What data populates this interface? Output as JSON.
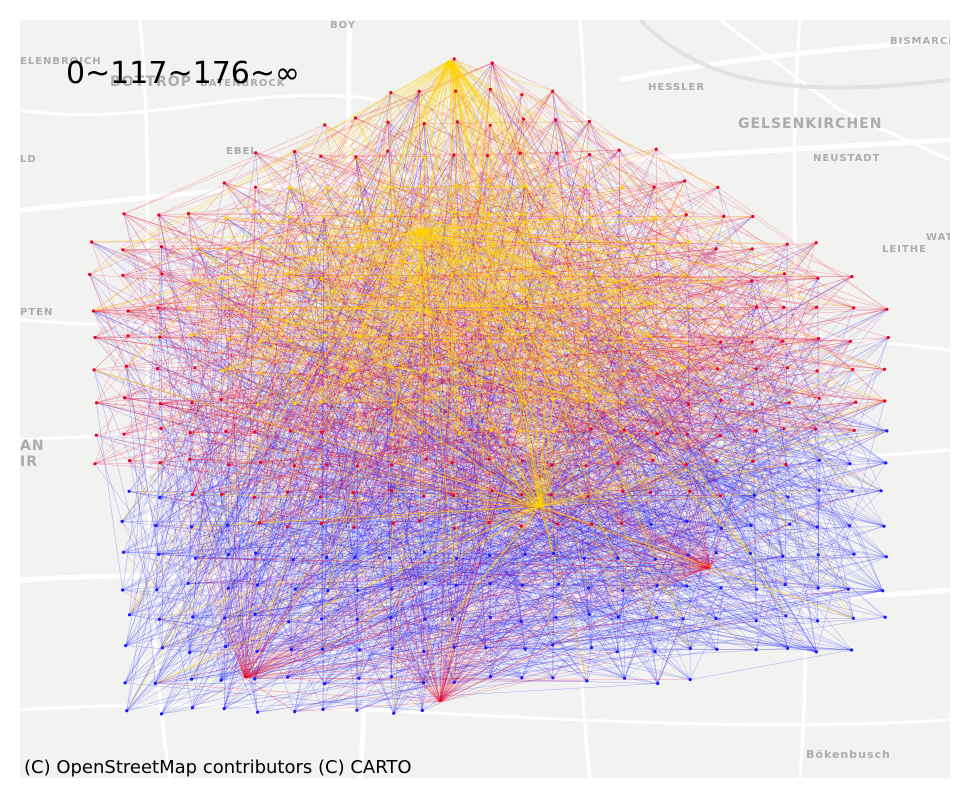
{
  "title_label": "0~117~176~∞",
  "attribution": "(C) OpenStreetMap contributors (C) CARTO",
  "places": [
    {
      "name": "BOY",
      "size": 10
    },
    {
      "name": "BISMARCK",
      "size": 10
    },
    {
      "name": "ELENBROICH",
      "size": 10
    },
    {
      "name": "BOTTROP",
      "size": 14
    },
    {
      "name": "BATENBROCK",
      "size": 10
    },
    {
      "name": "HESSLER",
      "size": 10
    },
    {
      "name": "GELSENKIRCHEN",
      "size": 14
    },
    {
      "name": "NEUSTADT",
      "size": 10
    },
    {
      "name": "LD",
      "size": 10
    },
    {
      "name": "EBEL",
      "size": 10
    },
    {
      "name": "LEITHE",
      "size": 10
    },
    {
      "name": "WAT",
      "size": 10
    },
    {
      "name": "PTEN",
      "size": 10
    },
    {
      "name": "AN",
      "size": 14
    },
    {
      "name": "IR",
      "size": 14
    },
    {
      "name": "Bökenbusch",
      "size": 11
    }
  ],
  "colors": {
    "background": "#f2f2f0",
    "roads": "#ffffff",
    "water": "#dfe3e6",
    "low_band": "#1a1aff",
    "mid_band": "#e8002a",
    "high_band": "#ffd400"
  },
  "thresholds": [
    117,
    176
  ]
}
